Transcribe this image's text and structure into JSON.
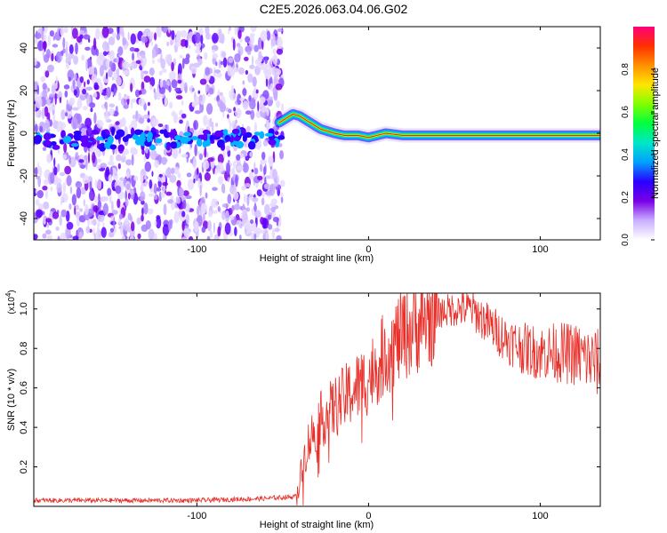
{
  "page_title": "C2E5.2026.063.04.06.G02",
  "chart_data": [
    {
      "type": "heatmap",
      "xlabel": "Height of straight line (km)",
      "ylabel": "Frequency (Hz)",
      "xlim": [
        -195,
        135
      ],
      "ylim": [
        -50,
        50
      ],
      "xticks": [
        -100,
        0,
        100
      ],
      "xtick_labels": [
        "-100",
        "0",
        "100"
      ],
      "yticks": [
        -40,
        -20,
        0,
        20,
        40
      ],
      "ytick_labels": [
        "-40",
        "-20",
        "0",
        "20",
        "40"
      ],
      "noise_region_x": [
        -195,
        -50
      ],
      "ridge_points": [
        {
          "x": -52,
          "y": 5
        },
        {
          "x": -48,
          "y": 7
        },
        {
          "x": -44,
          "y": 9
        },
        {
          "x": -40,
          "y": 8
        },
        {
          "x": -36,
          "y": 6
        },
        {
          "x": -32,
          "y": 4
        },
        {
          "x": -28,
          "y": 2
        },
        {
          "x": -24,
          "y": 1
        },
        {
          "x": -20,
          "y": 0
        },
        {
          "x": -14,
          "y": -1
        },
        {
          "x": -6,
          "y": -1
        },
        {
          "x": 0,
          "y": -2
        },
        {
          "x": 5,
          "y": -1
        },
        {
          "x": 10,
          "y": 0
        },
        {
          "x": 20,
          "y": -1
        },
        {
          "x": 40,
          "y": -1
        },
        {
          "x": 60,
          "y": -1
        },
        {
          "x": 80,
          "y": -1
        },
        {
          "x": 100,
          "y": -1
        },
        {
          "x": 120,
          "y": -1
        },
        {
          "x": 135,
          "y": -1
        }
      ],
      "noise_band_y": -3,
      "colorbar": {
        "label": "Normalized spectral amplitude",
        "range": [
          0,
          1
        ],
        "ticks": [
          0.0,
          0.2,
          0.4,
          0.6,
          0.8
        ],
        "tick_labels": [
          "0.0",
          "0.2",
          "0.4",
          "0.6",
          "0.8"
        ],
        "colors": [
          "#ffffff",
          "#c9b0ff",
          "#7a00e6",
          "#2a00ff",
          "#00a0ff",
          "#00e6c8",
          "#00ff40",
          "#80ff00",
          "#ffe600",
          "#ff9000",
          "#ff3000",
          "#ff007a"
        ]
      }
    },
    {
      "type": "line",
      "xlabel": "Height of straight line (km)",
      "ylabel": "SNR (10 * v/v)",
      "multiplier": "(x10",
      "multiplier_exp": "4",
      "multiplier_close": ")",
      "xlim": [
        -195,
        135
      ],
      "ylim": [
        0,
        1.08
      ],
      "xticks": [
        -100,
        0,
        100
      ],
      "xtick_labels": [
        "-100",
        "0",
        "100"
      ],
      "yticks": [
        0.2,
        0.4,
        0.6,
        0.8,
        1.0
      ],
      "ytick_labels": [
        "0.2",
        "0.4",
        "0.6",
        "0.8",
        "1.0"
      ],
      "line_color": "#e8302a",
      "series_envelope": [
        {
          "x": -195,
          "y": 0.03
        },
        {
          "x": -150,
          "y": 0.03
        },
        {
          "x": -100,
          "y": 0.03
        },
        {
          "x": -60,
          "y": 0.04
        },
        {
          "x": -42,
          "y": 0.05
        },
        {
          "x": -36,
          "y": 0.3
        },
        {
          "x": -30,
          "y": 0.42
        },
        {
          "x": -20,
          "y": 0.5
        },
        {
          "x": -10,
          "y": 0.58
        },
        {
          "x": 0,
          "y": 0.65
        },
        {
          "x": 10,
          "y": 0.78
        },
        {
          "x": 20,
          "y": 0.87
        },
        {
          "x": 30,
          "y": 0.93
        },
        {
          "x": 40,
          "y": 0.98
        },
        {
          "x": 50,
          "y": 1.0
        },
        {
          "x": 60,
          "y": 1.0
        },
        {
          "x": 70,
          "y": 0.92
        },
        {
          "x": 80,
          "y": 0.85
        },
        {
          "x": 90,
          "y": 0.8
        },
        {
          "x": 100,
          "y": 0.78
        },
        {
          "x": 110,
          "y": 0.78
        },
        {
          "x": 120,
          "y": 0.77
        },
        {
          "x": 135,
          "y": 0.72
        }
      ]
    }
  ]
}
